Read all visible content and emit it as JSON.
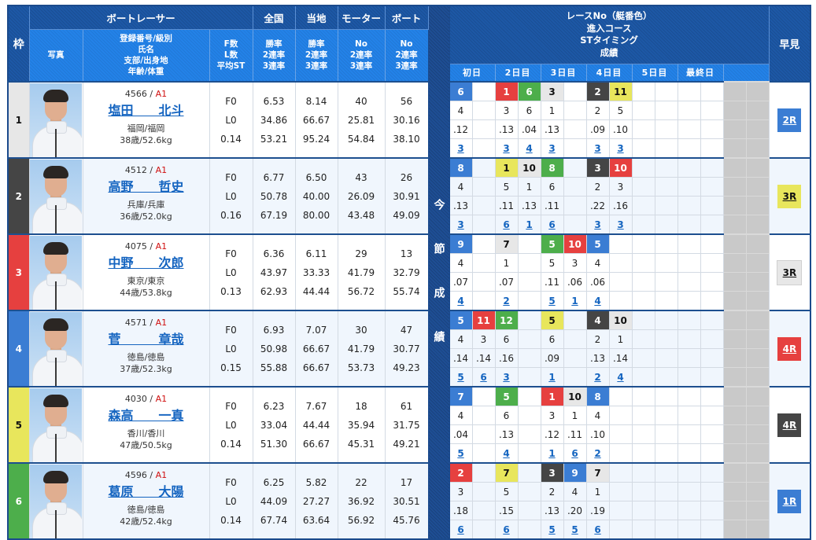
{
  "header": {
    "waku": "枠",
    "racer": "ボートレーサー",
    "national": "全国",
    "local": "当地",
    "motor": "モーター",
    "boat": "ボート",
    "photo": "写真",
    "profile_lines": [
      "登録番号/級別",
      "氏名",
      "支部/出身地",
      "年齢/体重"
    ],
    "fl_lines": [
      "F数",
      "L数",
      "平均ST"
    ],
    "national_lines": [
      "勝率",
      "2連率",
      "3連率"
    ],
    "local_lines": [
      "勝率",
      "2連率",
      "3連率"
    ],
    "motor_lines": [
      "No",
      "2連率",
      "3連率"
    ],
    "boat_lines": [
      "No",
      "2連率",
      "3連率"
    ],
    "series_label": "今節成績",
    "race_info_lines": [
      "レースNo（艇番色）",
      "進入コース",
      "STタイミング",
      "成績"
    ],
    "hayami": "早見",
    "days": [
      "初日",
      "2日目",
      "3日目",
      "4日目",
      "5日目",
      "最終日",
      ""
    ]
  },
  "boat_colors": {
    "1": "#e7e7e7",
    "2": "#454545",
    "3": "#e6403f",
    "4": "#3b7dd3",
    "5": "#e8e65c",
    "6": "#4dae4b"
  },
  "boat_text_colors": {
    "1": "#111111",
    "2": "#ffffff",
    "3": "#ffffff",
    "4": "#ffffff",
    "5": "#111111",
    "6": "#ffffff"
  },
  "racers": [
    {
      "waku": "1",
      "reg_no": "4566",
      "class": "A1",
      "name": "塩田　　北斗",
      "branch": "福岡/福岡",
      "age_weight": "38歳/52.6kg",
      "fl": [
        "F0",
        "L0",
        "0.14"
      ],
      "national": [
        "6.53",
        "34.86",
        "53.21"
      ],
      "local": [
        "8.14",
        "66.67",
        "95.24"
      ],
      "motor": [
        "40",
        "25.81",
        "54.84"
      ],
      "boat": [
        "56",
        "30.16",
        "38.10"
      ],
      "races": [
        {
          "race": "6",
          "boat": "4",
          "course": "4",
          "st": ".12",
          "result": "3"
        },
        null,
        {
          "race": "1",
          "boat": "3",
          "course": "3",
          "st": ".13",
          "result": "3"
        },
        {
          "race": "6",
          "boat": "6",
          "course": "6",
          "st": ".04",
          "result": "4"
        },
        {
          "race": "3",
          "boat": "1",
          "course": "1",
          "st": ".13",
          "result": "3"
        },
        null,
        {
          "race": "2",
          "boat": "2",
          "course": "2",
          "st": ".09",
          "result": "3"
        },
        {
          "race": "11",
          "boat": "5",
          "course": "5",
          "st": ".10",
          "result": "3"
        },
        null,
        null,
        null,
        null
      ],
      "hayami": {
        "label": "2R",
        "boat": "4"
      }
    },
    {
      "waku": "2",
      "reg_no": "4512",
      "class": "A1",
      "name": "高野　　哲史",
      "branch": "兵庫/兵庫",
      "age_weight": "36歳/52.0kg",
      "fl": [
        "F0",
        "L0",
        "0.16"
      ],
      "national": [
        "6.77",
        "50.78",
        "67.19"
      ],
      "local": [
        "6.50",
        "40.00",
        "80.00"
      ],
      "motor": [
        "43",
        "26.09",
        "43.48"
      ],
      "boat": [
        "26",
        "30.91",
        "49.09"
      ],
      "races": [
        {
          "race": "8",
          "boat": "4",
          "course": "4",
          "st": ".13",
          "result": "3"
        },
        null,
        {
          "race": "1",
          "boat": "5",
          "course": "5",
          "st": ".11",
          "result": "6"
        },
        {
          "race": "10",
          "boat": "1",
          "course": "1",
          "st": ".13",
          "result": "1"
        },
        {
          "race": "8",
          "boat": "6",
          "course": "6",
          "st": ".11",
          "result": "6"
        },
        null,
        {
          "race": "3",
          "boat": "2",
          "course": "2",
          "st": ".22",
          "result": "3"
        },
        {
          "race": "10",
          "boat": "3",
          "course": "3",
          "st": ".16",
          "result": "3"
        },
        null,
        null,
        null,
        null
      ],
      "hayami": {
        "label": "3R",
        "boat": "5"
      }
    },
    {
      "waku": "3",
      "reg_no": "4075",
      "class": "A1",
      "name": "中野　　次郎",
      "branch": "東京/東京",
      "age_weight": "44歳/53.8kg",
      "fl": [
        "F0",
        "L0",
        "0.13"
      ],
      "national": [
        "6.36",
        "43.97",
        "62.93"
      ],
      "local": [
        "6.11",
        "33.33",
        "44.44"
      ],
      "motor": [
        "29",
        "41.79",
        "56.72"
      ],
      "boat": [
        "13",
        "32.79",
        "55.74"
      ],
      "races": [
        {
          "race": "9",
          "boat": "4",
          "course": "4",
          "st": ".07",
          "result": "4"
        },
        null,
        {
          "race": "7",
          "boat": "1",
          "course": "1",
          "st": ".07",
          "result": "2"
        },
        null,
        {
          "race": "5",
          "boat": "6",
          "course": "5",
          "st": ".11",
          "result": "5"
        },
        {
          "race": "10",
          "boat": "3",
          "course": "3",
          "st": ".06",
          "result": "1"
        },
        {
          "race": "5",
          "boat": "4",
          "course": "4",
          "st": ".06",
          "result": "4"
        },
        null,
        null,
        null,
        null,
        null
      ],
      "hayami": {
        "label": "3R",
        "boat": "1"
      }
    },
    {
      "waku": "4",
      "reg_no": "4571",
      "class": "A1",
      "name": "菅　　　章哉",
      "branch": "徳島/徳島",
      "age_weight": "37歳/52.3kg",
      "fl": [
        "F0",
        "L0",
        "0.15"
      ],
      "national": [
        "6.93",
        "50.98",
        "55.88"
      ],
      "local": [
        "7.07",
        "66.67",
        "66.67"
      ],
      "motor": [
        "30",
        "41.79",
        "53.73"
      ],
      "boat": [
        "47",
        "30.77",
        "49.23"
      ],
      "races": [
        {
          "race": "5",
          "boat": "4",
          "course": "4",
          "st": ".14",
          "result": "5"
        },
        {
          "race": "11",
          "boat": "3",
          "course": "3",
          "st": ".14",
          "result": "6"
        },
        {
          "race": "12",
          "boat": "6",
          "course": "6",
          "st": ".16",
          "result": "3"
        },
        null,
        {
          "race": "5",
          "boat": "5",
          "course": "6",
          "st": ".09",
          "result": "1"
        },
        null,
        {
          "race": "4",
          "boat": "2",
          "course": "2",
          "st": ".13",
          "result": "2"
        },
        {
          "race": "10",
          "boat": "1",
          "course": "1",
          "st": ".14",
          "result": "4"
        },
        null,
        null,
        null,
        null
      ],
      "hayami": {
        "label": "4R",
        "boat": "3"
      }
    },
    {
      "waku": "5",
      "reg_no": "4030",
      "class": "A1",
      "name": "森高　　一真",
      "branch": "香川/香川",
      "age_weight": "47歳/50.5kg",
      "fl": [
        "F0",
        "L0",
        "0.14"
      ],
      "national": [
        "6.23",
        "33.04",
        "51.30"
      ],
      "local": [
        "7.67",
        "44.44",
        "66.67"
      ],
      "motor": [
        "18",
        "35.94",
        "45.31"
      ],
      "boat": [
        "61",
        "31.75",
        "49.21"
      ],
      "races": [
        {
          "race": "7",
          "boat": "4",
          "course": "4",
          "st": ".04",
          "result": "5"
        },
        null,
        {
          "race": "5",
          "boat": "6",
          "course": "6",
          "st": ".13",
          "result": "4"
        },
        null,
        {
          "race": "1",
          "boat": "3",
          "course": "3",
          "st": ".12",
          "result": "1"
        },
        {
          "race": "10",
          "boat": "1",
          "course": "1",
          "st": ".11",
          "result": "6"
        },
        {
          "race": "8",
          "boat": "4",
          "course": "4",
          "st": ".10",
          "result": "2"
        },
        null,
        null,
        null,
        null,
        null
      ],
      "hayami": {
        "label": "4R",
        "boat": "2"
      }
    },
    {
      "waku": "6",
      "reg_no": "4596",
      "class": "A1",
      "name": "葛原　　大陽",
      "branch": "徳島/徳島",
      "age_weight": "42歳/52.4kg",
      "fl": [
        "F0",
        "L0",
        "0.14"
      ],
      "national": [
        "6.25",
        "44.09",
        "67.74"
      ],
      "local": [
        "5.82",
        "27.27",
        "63.64"
      ],
      "motor": [
        "22",
        "36.92",
        "56.92"
      ],
      "boat": [
        "17",
        "30.51",
        "45.76"
      ],
      "races": [
        {
          "race": "2",
          "boat": "3",
          "course": "3",
          "st": ".18",
          "result": "6"
        },
        null,
        {
          "race": "7",
          "boat": "5",
          "course": "5",
          "st": ".15",
          "result": "6"
        },
        null,
        {
          "race": "3",
          "boat": "2",
          "course": "2",
          "st": ".13",
          "result": "5"
        },
        {
          "race": "9",
          "boat": "4",
          "course": "4",
          "st": ".20",
          "result": "5"
        },
        {
          "race": "7",
          "boat": "1",
          "course": "1",
          "st": ".19",
          "result": "6"
        },
        null,
        null,
        null,
        null,
        null
      ],
      "hayami": {
        "label": "1R",
        "boat": "4"
      }
    }
  ]
}
